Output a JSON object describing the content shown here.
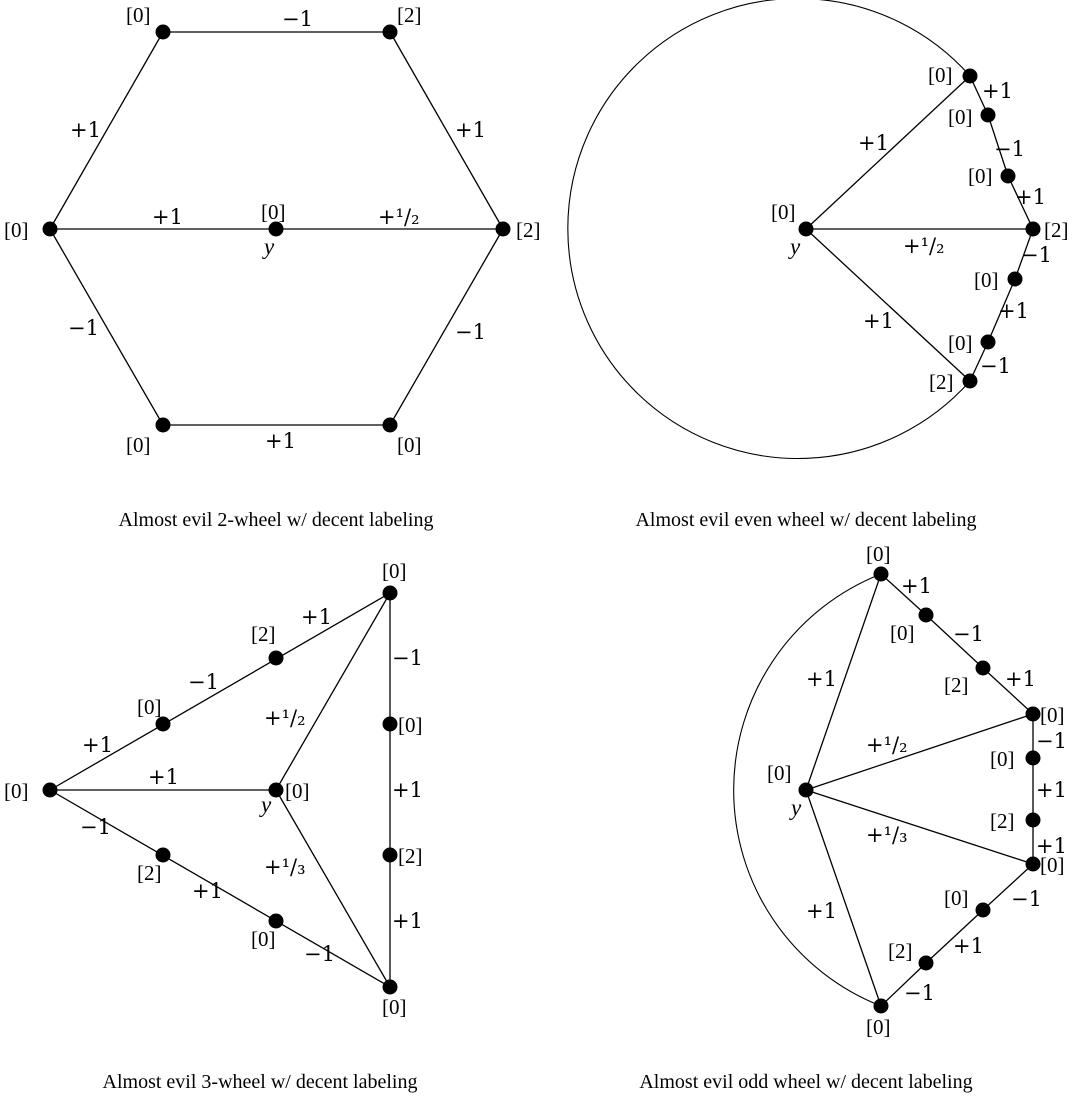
{
  "panels": [
    {
      "caption": "Almost evil 2-wheel w/ decent labeling",
      "center_label": "y",
      "node_labels": [
        "[0]",
        "[2]",
        "[0]",
        "[0]",
        "[2]",
        "[0]",
        "[0]"
      ],
      "edge_labels": [
        "−1",
        "+1",
        "−1",
        "+1",
        "−1",
        "+1",
        "+1",
        "+¹/₂"
      ]
    },
    {
      "caption": "Almost evil even wheel w/ decent labeling",
      "center_label": "y",
      "node_labels": [
        "[0]",
        "[0]",
        "[0]",
        "[2]",
        "[0]",
        "[0]",
        "[2]",
        "[0]"
      ],
      "edge_labels": [
        "+1",
        "+¹/₂",
        "+1",
        "+1",
        "−1",
        "+1",
        "−1",
        "+1",
        "−1"
      ]
    },
    {
      "caption": "Almost evil 3-wheel w/ decent labeling",
      "center_label": "y",
      "node_labels": [
        "[0]",
        "[0]",
        "[0]",
        "[0]",
        "[2]",
        "[0]",
        "[2]",
        "[0]",
        "[0]",
        "[2]"
      ],
      "edge_labels": [
        "+1",
        "−1",
        "+1",
        "−1",
        "+1",
        "+1",
        "−1",
        "+1",
        "−1",
        "+1",
        "+¹/₂",
        "+¹/₃"
      ]
    },
    {
      "caption": "Almost evil odd wheel w/ decent labeling",
      "center_label": "y",
      "node_labels": [
        "[0]",
        "[0]",
        "[2]",
        "[0]",
        "[0]",
        "[2]",
        "[0]",
        "[0]",
        "[2]",
        "[0]",
        "[0]"
      ],
      "edge_labels": [
        "+1",
        "−1",
        "+1",
        "−1",
        "+1",
        "+1",
        "−1",
        "+1",
        "−1",
        "+1",
        "+¹/₂",
        "+¹/₃",
        "+1"
      ]
    }
  ]
}
